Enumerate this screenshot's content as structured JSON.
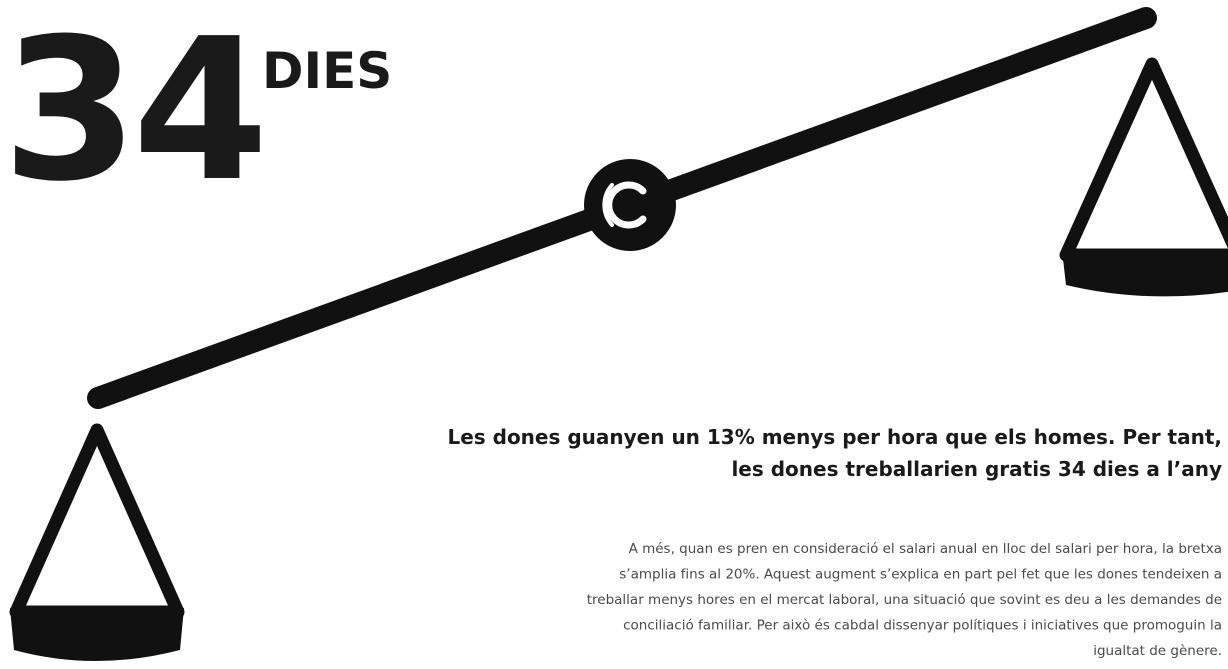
{
  "headline": {
    "number": "34",
    "unit": "DIES"
  },
  "statement": {
    "lines": [
      "Les dones guanyen un 13% menys per hora que els homes. Per tant,",
      "les dones treballarien gratis 34 dies a l’any"
    ]
  },
  "body": {
    "lines": [
      "A més, quan es pren en consideració el salari anual en lloc del salari per hora, la bretxa",
      "s’amplia fins al 20%. Aquest augment s’explica en part pel fet que les dones tendeixen a",
      "treballar menys hores en el mercat laboral, una situació que sovint es deu a les demandes de",
      "conciliació familiar. Per això és cabdal dissenyar polítiques i iniciatives que promoguin la",
      "igualtat de gènere."
    ]
  }
}
